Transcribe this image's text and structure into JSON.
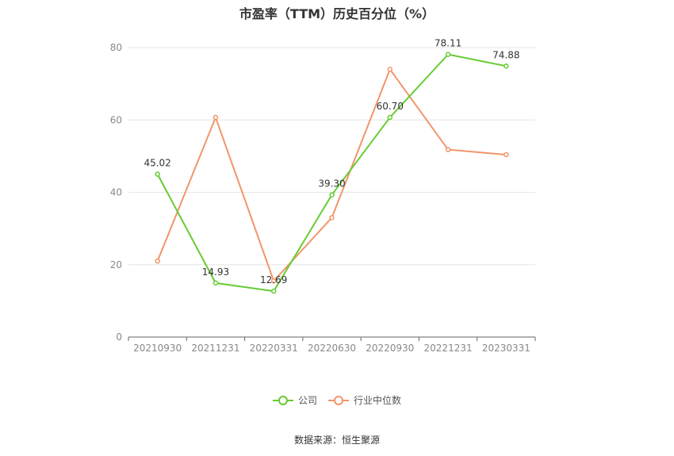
{
  "title": "市盈率（TTM）历史百分位（%）",
  "source": "数据来源：恒生聚源",
  "colors": {
    "company": "#66cc33",
    "industry": "#f2956a",
    "grid": "#e6e6e6",
    "axis": "#666666",
    "tick": "#888888"
  },
  "chart_data": {
    "type": "line",
    "title": "市盈率（TTM）历史百分位（%）",
    "categories": [
      "20210930",
      "20211231",
      "20220331",
      "20220630",
      "20220930",
      "20221231",
      "20230331"
    ],
    "ylim": [
      0,
      80
    ],
    "yticks": [
      0,
      20,
      40,
      60,
      80
    ],
    "grid": true,
    "legend_position": "bottom-center",
    "series": [
      {
        "name": "公司",
        "color": "#66cc33",
        "values": [
          45.02,
          14.93,
          12.69,
          39.3,
          60.7,
          78.11,
          74.88
        ],
        "labels": [
          "45.02",
          "14.93",
          "12.69",
          "39.30",
          "60.70",
          "78.11",
          "74.88"
        ]
      },
      {
        "name": "行业中位数",
        "color": "#f2956a",
        "values": [
          21.0,
          60.7,
          15.5,
          33.0,
          74.0,
          51.8,
          50.4
        ]
      }
    ]
  }
}
